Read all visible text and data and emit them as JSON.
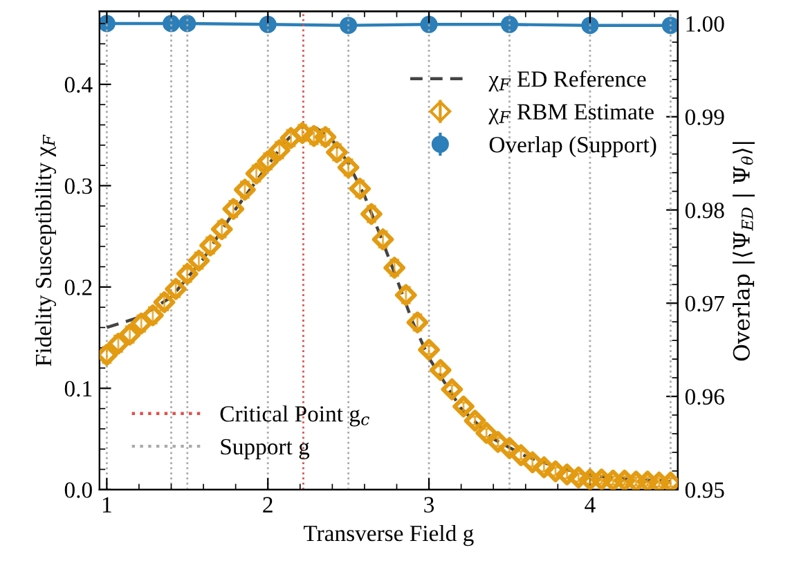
{
  "chart_data": {
    "type": "scatter",
    "xlabel": "Transverse Field g",
    "ylabel": "Fidelity Susceptibility χ$_{F}$",
    "y2label": "Overlap |⟨Ψ$_{ED}$ | Ψ$_{θ}$⟩|",
    "xlim": [
      0.955,
      4.545
    ],
    "xticks": [
      1,
      2,
      3,
      4
    ],
    "ylim": [
      0.0,
      0.472
    ],
    "yticks": [
      {
        "value": 0,
        "label": "0.0"
      },
      0.1,
      0.2,
      0.3,
      0.4
    ],
    "y2lim": [
      0.95,
      1.0013
    ],
    "y2ticks": [
      0.95,
      0.96,
      0.97,
      0.98,
      0.99,
      {
        "value": 1,
        "label": "1.00"
      }
    ],
    "legend": "top right",
    "grid": false,
    "series": [
      {
        "name": "χ$_{F}$ ED Reference",
        "type": "line",
        "line_style": "dashed",
        "marker": "none",
        "color": "#444444",
        "x": [
          1.0,
          1.2,
          1.4,
          1.6,
          1.8,
          2.0,
          2.1,
          2.2,
          2.3,
          2.4,
          2.5,
          2.6,
          2.7,
          2.8,
          2.9,
          3.0,
          3.2,
          3.4,
          3.6,
          3.8,
          4.0,
          4.25,
          4.5
        ],
        "values": [
          0.16,
          0.17,
          0.19,
          0.228,
          0.277,
          0.32,
          0.342,
          0.358,
          0.357,
          0.345,
          0.322,
          0.29,
          0.25,
          0.208,
          0.165,
          0.13,
          0.08,
          0.05,
          0.033,
          0.022,
          0.014,
          0.01,
          0.008
        ]
      },
      {
        "name": "χ$_{F}$ RBM Estimate",
        "marker": "diamond",
        "color": "#e39b12",
        "x": [
          1.0,
          1.0714,
          1.1429,
          1.2143,
          1.2857,
          1.3571,
          1.4286,
          1.5,
          1.5714,
          1.6429,
          1.7143,
          1.7857,
          1.8571,
          1.9286,
          2.0,
          2.0714,
          2.1429,
          2.2143,
          2.2857,
          2.3571,
          2.4286,
          2.5,
          2.5714,
          2.6429,
          2.7143,
          2.7857,
          2.8571,
          2.9286,
          3.0,
          3.0714,
          3.1429,
          3.2143,
          3.2857,
          3.3571,
          3.4286,
          3.5,
          3.5714,
          3.6429,
          3.7143,
          3.7857,
          3.8571,
          3.9286,
          4.0,
          4.0714,
          4.1429,
          4.2143,
          4.2857,
          4.3571,
          4.4286,
          4.5
        ],
        "values": [
          0.133,
          0.144,
          0.153,
          0.164,
          0.172,
          0.185,
          0.198,
          0.213,
          0.226,
          0.241,
          0.257,
          0.277,
          0.296,
          0.312,
          0.324,
          0.335,
          0.347,
          0.352,
          0.349,
          0.348,
          0.333,
          0.318,
          0.297,
          0.272,
          0.247,
          0.219,
          0.192,
          0.165,
          0.138,
          0.118,
          0.099,
          0.082,
          0.068,
          0.056,
          0.047,
          0.041,
          0.034,
          0.027,
          0.022,
          0.018,
          0.015,
          0.012,
          0.01,
          0.01,
          0.009,
          0.009,
          0.008,
          0.008,
          0.007,
          0.007
        ],
        "errors": [
          0.008,
          0.008,
          0.008,
          0.008,
          0.008,
          0.008,
          0.008,
          0.008,
          0.008,
          0.008,
          0.008,
          0.008,
          0.008,
          0.008,
          0.008,
          0.008,
          0.008,
          0.008,
          0.008,
          0.008,
          0.008,
          0.008,
          0.008,
          0.008,
          0.008,
          0.008,
          0.008,
          0.008,
          0.004,
          0.004,
          0.004,
          0.004,
          0.004,
          0.004,
          0.004,
          0.004,
          0.004,
          0.004,
          0.004,
          0.004,
          0.004,
          0.004,
          0.004,
          0.004,
          0.004,
          0.004,
          0.004,
          0.004,
          0.004,
          0.004
        ]
      },
      {
        "name": "Overlap (Support)",
        "type": "line",
        "axis": "y2",
        "marker": "circle",
        "line_style": "solid",
        "color": "#2c7fb8",
        "x": [
          1.0,
          1.4,
          1.5,
          2.0,
          2.5,
          3.0,
          3.5,
          4.0,
          4.5
        ],
        "values": [
          1.0,
          1.0,
          1.0,
          0.9999,
          0.9998,
          0.9999,
          0.9999,
          0.9998,
          0.9998
        ],
        "errors": [
          0.0002,
          0.0002,
          0.0002,
          0.0002,
          0.0002,
          0.0002,
          0.0002,
          0.0002,
          0.0002
        ]
      }
    ],
    "ref_lines": [
      {
        "axis": "x",
        "value": 2.22,
        "label": "Critical Point g$_{c}$",
        "color": "#e0504a",
        "line_style": "dotted"
      },
      {
        "axis": "x",
        "value": 1.0,
        "label": null,
        "color": "#aaaaaa",
        "line_style": "dotted"
      },
      {
        "axis": "x",
        "value": 1.4,
        "label": "Support g",
        "color": "#aaaaaa",
        "line_style": "dotted"
      },
      {
        "axis": "x",
        "value": 1.5,
        "label": null,
        "color": "#aaaaaa",
        "line_style": "dotted"
      },
      {
        "axis": "x",
        "value": 2.0,
        "label": null,
        "color": "#aaaaaa",
        "line_style": "dotted"
      },
      {
        "axis": "x",
        "value": 2.5,
        "label": null,
        "color": "#aaaaaa",
        "line_style": "dotted"
      },
      {
        "axis": "x",
        "value": 3.0,
        "label": null,
        "color": "#aaaaaa",
        "line_style": "dotted"
      },
      {
        "axis": "x",
        "value": 3.5,
        "label": null,
        "color": "#aaaaaa",
        "line_style": "dotted"
      },
      {
        "axis": "x",
        "value": 4.0,
        "label": null,
        "color": "#aaaaaa",
        "line_style": "dotted"
      },
      {
        "axis": "x",
        "value": 4.5,
        "label": null,
        "color": "#aaaaaa",
        "line_style": "dotted"
      }
    ]
  }
}
